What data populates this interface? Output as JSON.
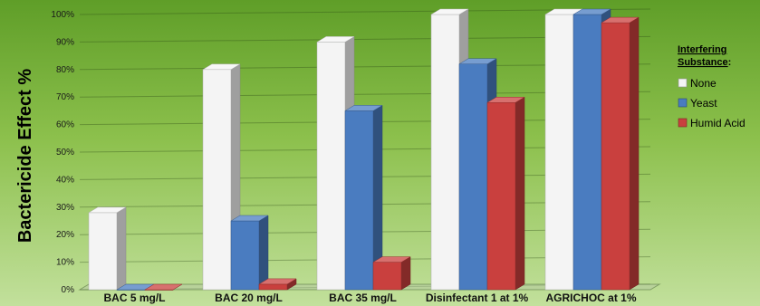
{
  "chart_data": {
    "type": "bar",
    "ylabel": "Bactericide Effect %",
    "xlabel": "",
    "ylim": [
      0,
      100
    ],
    "yticks": [
      "0%",
      "10%",
      "20%",
      "30%",
      "40%",
      "50%",
      "60%",
      "70%",
      "80%",
      "90%",
      "100%"
    ],
    "categories": [
      "BAC 5 mg/L",
      "BAC 20 mg/L",
      "BAC 35 mg/L",
      "Disinfectant 1 at 1%",
      "AGRICHOC at 1%"
    ],
    "series": [
      {
        "name": "None",
        "color": "#f4f4f4",
        "values": [
          28,
          80,
          90,
          100,
          100
        ]
      },
      {
        "name": "Yeast",
        "color": "#4a7cc0",
        "values": [
          0,
          25,
          65,
          82,
          100
        ]
      },
      {
        "name": "Humid Acid",
        "color": "#c9403e",
        "values": [
          0,
          2,
          10,
          68,
          97
        ]
      }
    ],
    "legend": {
      "title_line1": "Interfering",
      "title_line2": "Substance",
      "title_suffix": ":",
      "position": "right"
    },
    "grid": true,
    "three_d": true
  }
}
